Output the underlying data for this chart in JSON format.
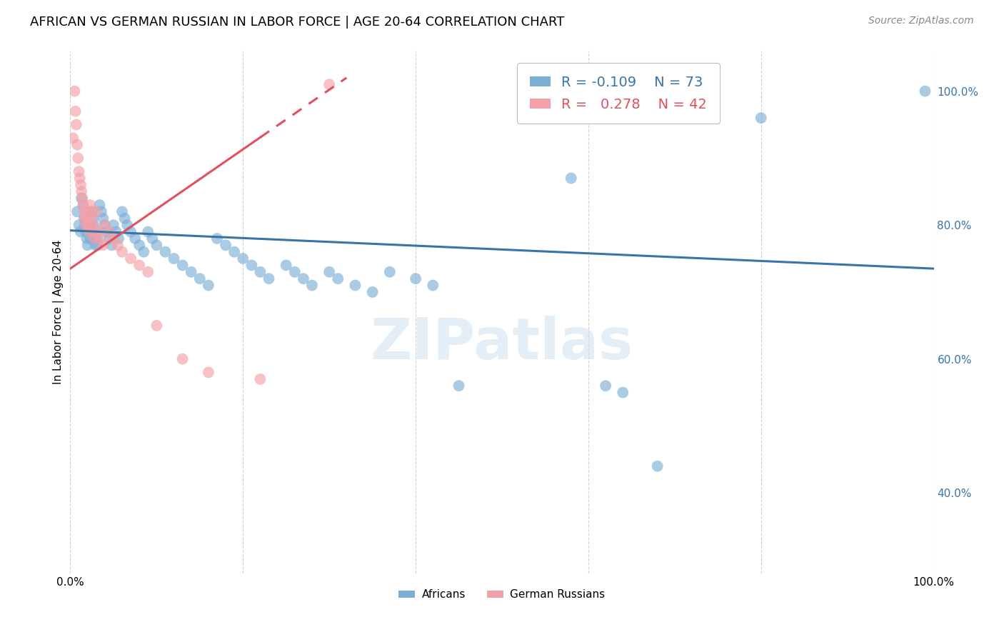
{
  "title": "AFRICAN VS GERMAN RUSSIAN IN LABOR FORCE | AGE 20-64 CORRELATION CHART",
  "source": "Source: ZipAtlas.com",
  "ylabel": "In Labor Force | Age 20-64",
  "xlim": [
    0.0,
    1.0
  ],
  "ylim": [
    0.28,
    1.06
  ],
  "x_tick_labels_left": "0.0%",
  "x_tick_labels_right": "100.0%",
  "y_tick_labels_right": [
    "100.0%",
    "80.0%",
    "60.0%",
    "40.0%"
  ],
  "y_ticks_right": [
    1.0,
    0.8,
    0.6,
    0.4
  ],
  "blue_color": "#7bafd4",
  "pink_color": "#f4a0a8",
  "blue_line_color": "#3874a8",
  "pink_line_color": "#e05060",
  "legend_blue_r": "-0.109",
  "legend_blue_n": "73",
  "legend_pink_r": "0.278",
  "legend_pink_n": "42",
  "watermark": "ZIPatlas",
  "blue_trend_y_start": 0.792,
  "blue_trend_y_end": 0.735,
  "pink_trend_x_start": 0.0,
  "pink_trend_x_end": 0.32,
  "pink_trend_y_start": 0.735,
  "pink_trend_y_end": 1.02,
  "grid_color": "#cccccc",
  "background_color": "#ffffff",
  "title_fontsize": 13,
  "axis_label_fontsize": 11,
  "tick_fontsize": 11,
  "source_fontsize": 10,
  "legend_fontsize": 14,
  "dot_size": 130,
  "dot_alpha": 0.65,
  "blue_dots_x": [
    0.008,
    0.01,
    0.012,
    0.013,
    0.015,
    0.016,
    0.017,
    0.018,
    0.019,
    0.02,
    0.021,
    0.022,
    0.023,
    0.024,
    0.025,
    0.026,
    0.027,
    0.028,
    0.029,
    0.03,
    0.031,
    0.032,
    0.034,
    0.036,
    0.038,
    0.04,
    0.042,
    0.045,
    0.048,
    0.05,
    0.053,
    0.056,
    0.06,
    0.063,
    0.066,
    0.07,
    0.075,
    0.08,
    0.085,
    0.09,
    0.095,
    0.1,
    0.11,
    0.12,
    0.13,
    0.14,
    0.15,
    0.16,
    0.17,
    0.18,
    0.19,
    0.2,
    0.21,
    0.22,
    0.23,
    0.25,
    0.26,
    0.27,
    0.28,
    0.3,
    0.31,
    0.33,
    0.35,
    0.37,
    0.4,
    0.42,
    0.45,
    0.58,
    0.62,
    0.64,
    0.68,
    0.8,
    0.99
  ],
  "blue_dots_y": [
    0.82,
    0.8,
    0.79,
    0.84,
    0.83,
    0.81,
    0.8,
    0.79,
    0.78,
    0.77,
    0.82,
    0.8,
    0.78,
    0.79,
    0.82,
    0.81,
    0.8,
    0.78,
    0.77,
    0.79,
    0.78,
    0.77,
    0.83,
    0.82,
    0.81,
    0.8,
    0.79,
    0.78,
    0.77,
    0.8,
    0.79,
    0.78,
    0.82,
    0.81,
    0.8,
    0.79,
    0.78,
    0.77,
    0.76,
    0.79,
    0.78,
    0.77,
    0.76,
    0.75,
    0.74,
    0.73,
    0.72,
    0.71,
    0.78,
    0.77,
    0.76,
    0.75,
    0.74,
    0.73,
    0.72,
    0.74,
    0.73,
    0.72,
    0.71,
    0.73,
    0.72,
    0.71,
    0.7,
    0.73,
    0.72,
    0.71,
    0.56,
    0.87,
    0.56,
    0.55,
    0.44,
    0.96,
    1.0
  ],
  "pink_dots_x": [
    0.003,
    0.005,
    0.006,
    0.007,
    0.008,
    0.009,
    0.01,
    0.011,
    0.012,
    0.013,
    0.014,
    0.015,
    0.016,
    0.017,
    0.018,
    0.019,
    0.02,
    0.021,
    0.022,
    0.023,
    0.024,
    0.025,
    0.026,
    0.027,
    0.028,
    0.03,
    0.032,
    0.035,
    0.038,
    0.04,
    0.045,
    0.05,
    0.055,
    0.06,
    0.07,
    0.08,
    0.09,
    0.1,
    0.13,
    0.16,
    0.22,
    0.3
  ],
  "pink_dots_y": [
    0.93,
    1.0,
    0.97,
    0.95,
    0.92,
    0.9,
    0.88,
    0.87,
    0.86,
    0.85,
    0.84,
    0.83,
    0.82,
    0.81,
    0.8,
    0.82,
    0.81,
    0.8,
    0.79,
    0.83,
    0.82,
    0.81,
    0.8,
    0.79,
    0.78,
    0.82,
    0.79,
    0.78,
    0.77,
    0.8,
    0.79,
    0.78,
    0.77,
    0.76,
    0.75,
    0.74,
    0.73,
    0.65,
    0.6,
    0.58,
    0.57,
    1.01
  ]
}
